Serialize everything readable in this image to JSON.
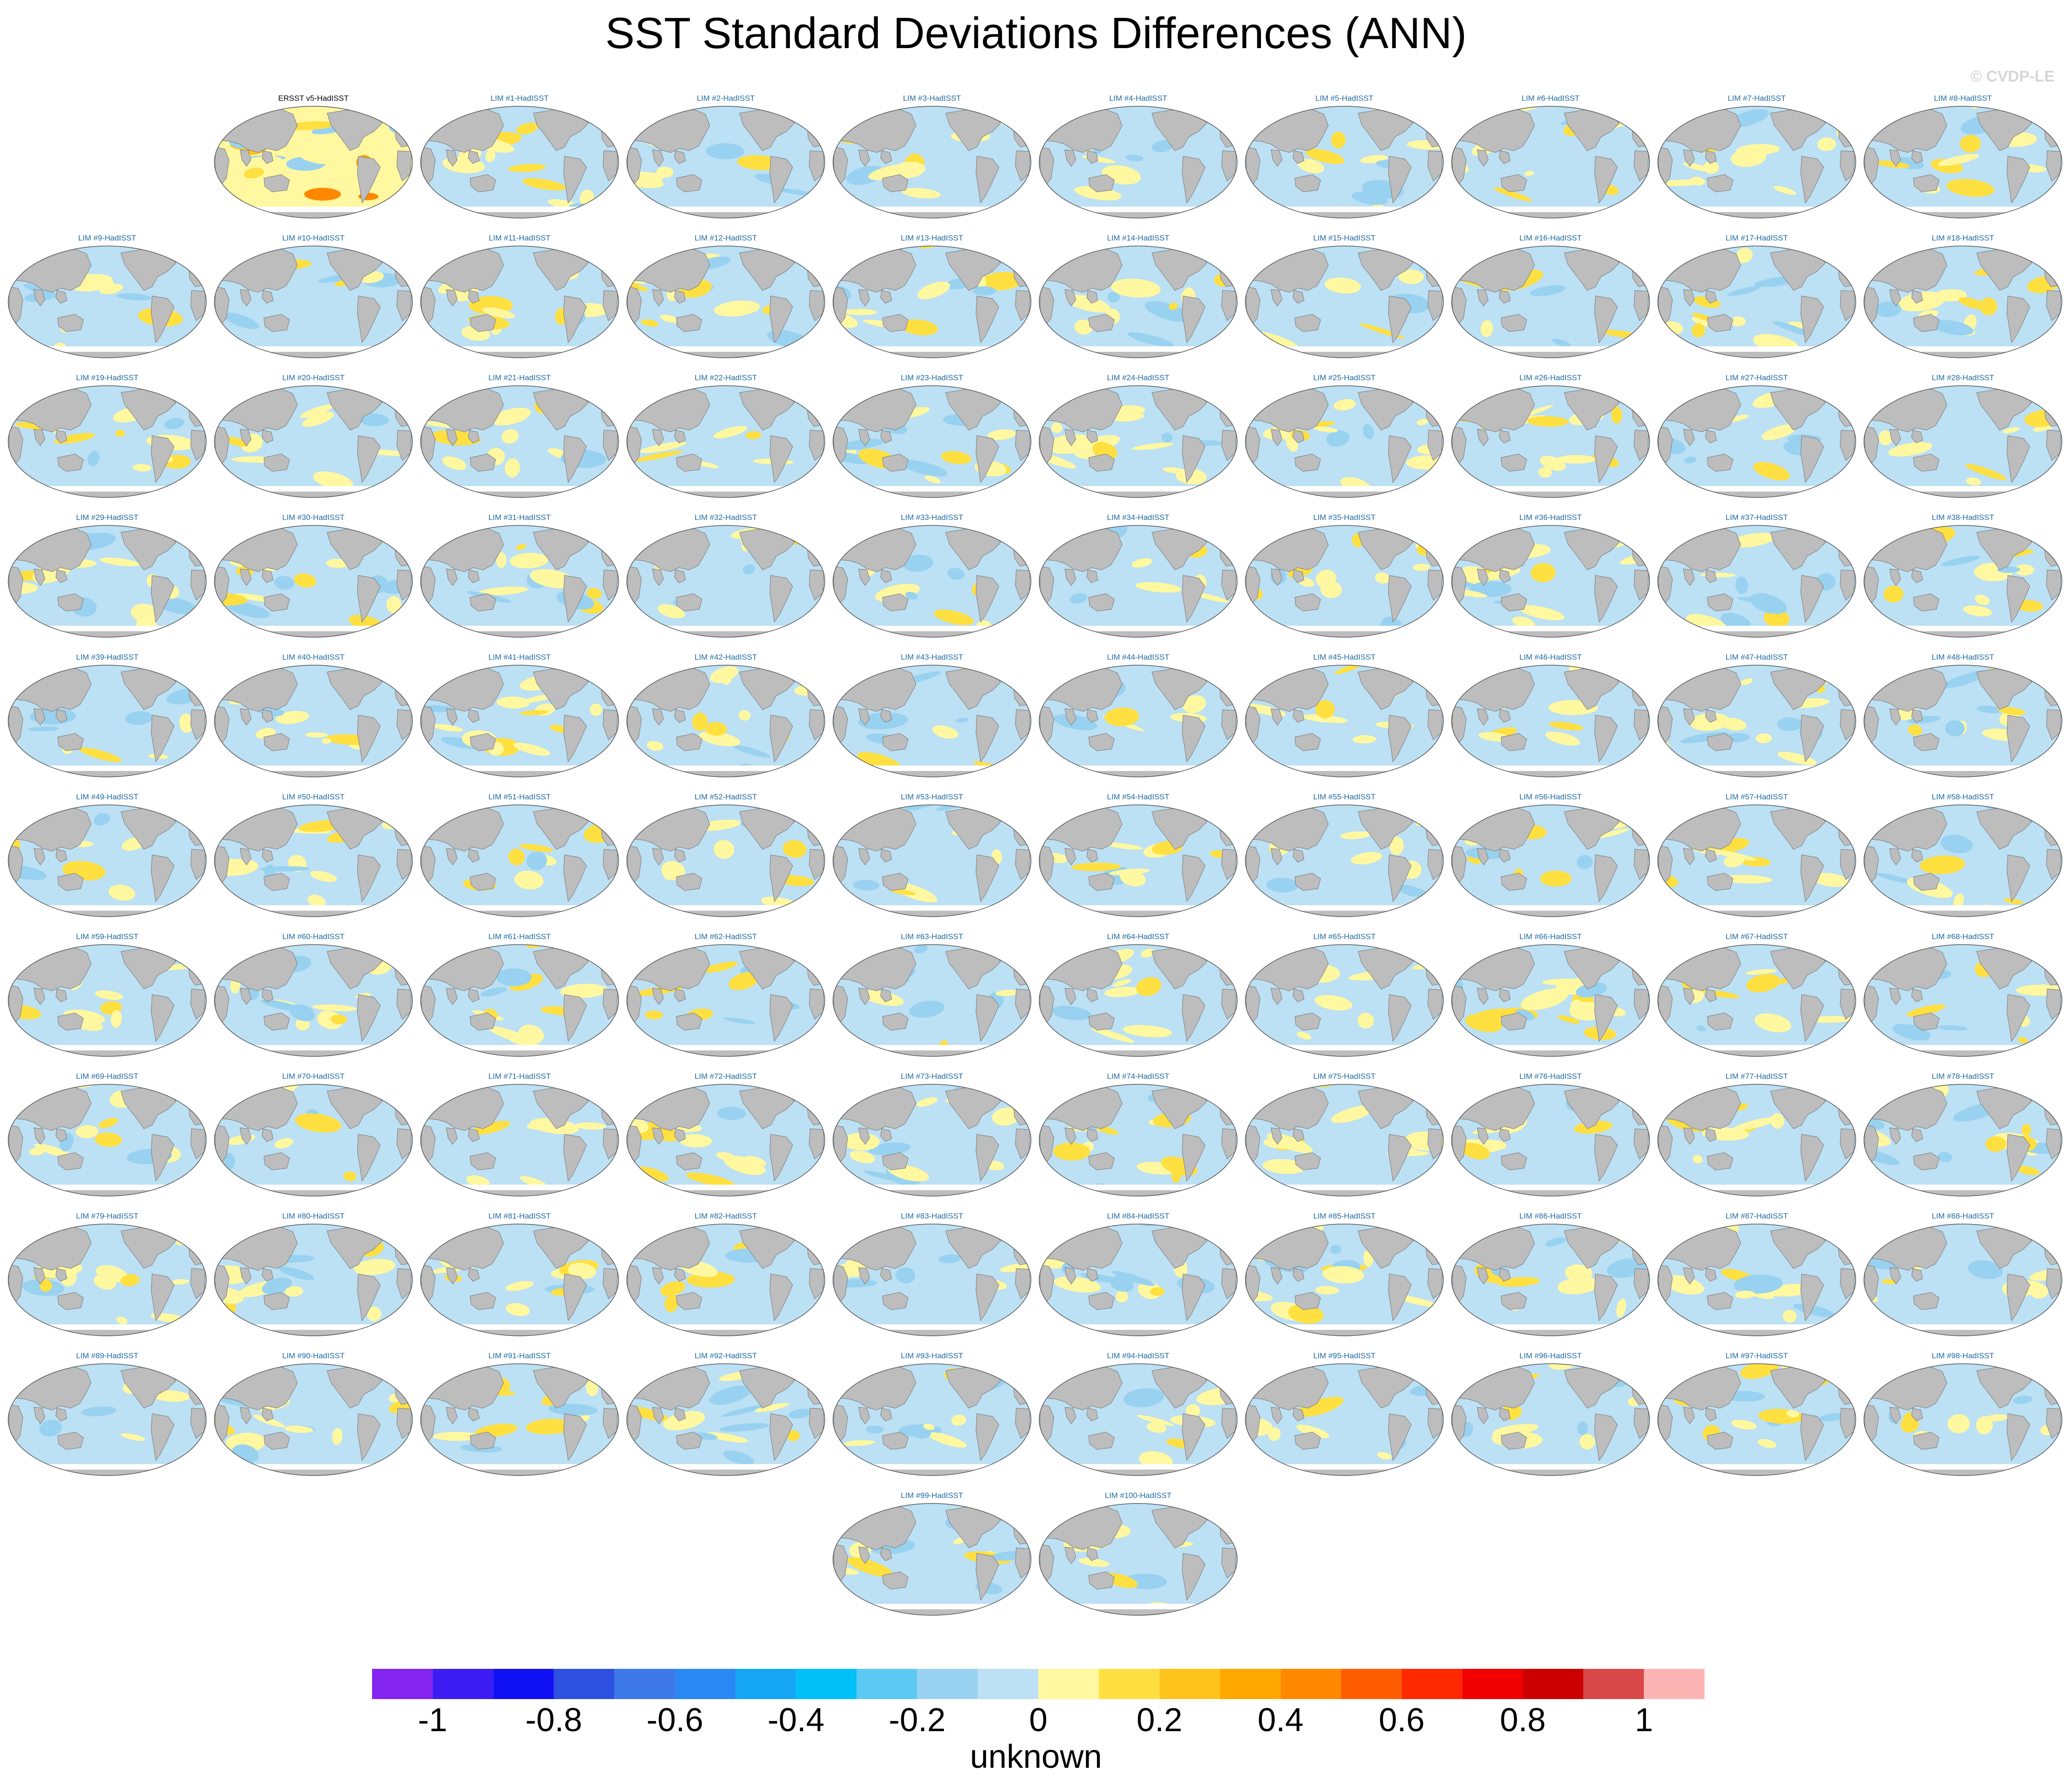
{
  "title": "SST Standard Deviations Differences (ANN)",
  "watermark": "© CVDP-LE",
  "colorbar": {
    "label": "unknown",
    "ticks": [
      "-1",
      "-0.8",
      "-0.6",
      "-0.4",
      "-0.2",
      "0",
      "0.2",
      "0.4",
      "0.6",
      "0.8",
      "1"
    ],
    "tick_values": [
      -1,
      -0.8,
      -0.6,
      -0.4,
      -0.2,
      0,
      0.2,
      0.4,
      0.6,
      0.8,
      1
    ],
    "colors": [
      "#8424f0",
      "#3c1cf2",
      "#1010f5",
      "#2e50e0",
      "#3c78e8",
      "#2a88f4",
      "#14a6f4",
      "#00c0f8",
      "#5cc8f4",
      "#98d2f0",
      "#bce0f4",
      "#fff8a0",
      "#ffe040",
      "#ffc41c",
      "#ffa800",
      "#ff8800",
      "#ff5c00",
      "#ff2800",
      "#f00000",
      "#cc0000",
      "#d84848",
      "#ffb4b4"
    ]
  },
  "panels": {
    "observed": "ERSST v5-HadISST",
    "prefix": "LIM #",
    "suffix": "-HadISST",
    "count": 100
  }
}
